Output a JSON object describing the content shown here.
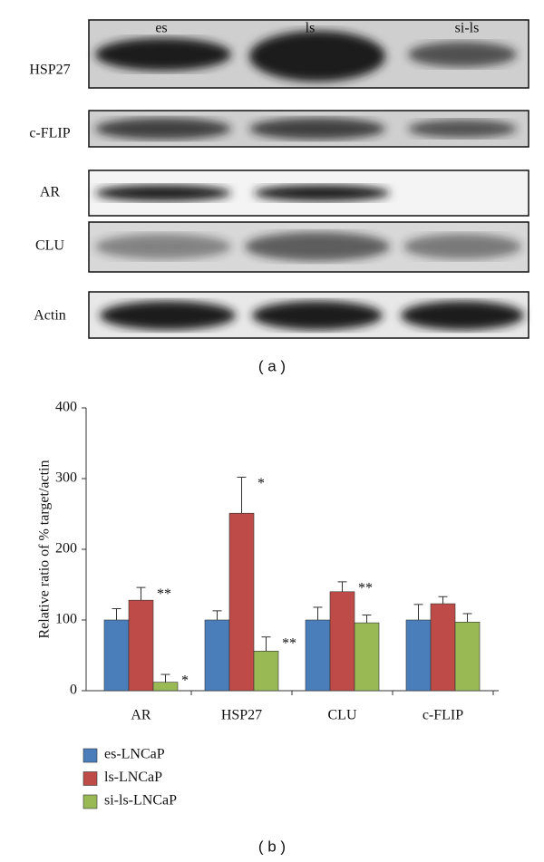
{
  "blot": {
    "lanes": [
      "es",
      "ls",
      "si-ls"
    ],
    "rows": [
      "HSP27",
      "c-FLIP",
      "AR",
      "CLU",
      "Actin"
    ],
    "panel_label": "( a )"
  },
  "chart_data": {
    "type": "bar",
    "ylabel": "Relative ratio of % target/actin",
    "categories": [
      "AR",
      "HSP27",
      "CLU",
      "c-FLIP"
    ],
    "series": [
      {
        "name": "es-LNCaP",
        "color": "#4a7ebb",
        "values": [
          100,
          100,
          100,
          100
        ],
        "errors": [
          16,
          13,
          18,
          22
        ],
        "annotations": [
          null,
          null,
          null,
          null
        ]
      },
      {
        "name": "ls-LNCaP",
        "color": "#be4b48",
        "values": [
          128,
          251,
          140,
          123
        ],
        "errors": [
          18,
          51,
          14,
          10
        ],
        "annotations": [
          "**",
          "*",
          "**",
          null
        ]
      },
      {
        "name": "si-ls-LNCaP",
        "color": "#98b954",
        "values": [
          12,
          56,
          96,
          97
        ],
        "errors": [
          11,
          20,
          11,
          12
        ],
        "annotations": [
          "*",
          "**",
          null,
          null
        ]
      }
    ],
    "ylim": [
      0,
      400
    ],
    "yticks": [
      0,
      100,
      200,
      300,
      400
    ],
    "panel_label": "( b )"
  }
}
